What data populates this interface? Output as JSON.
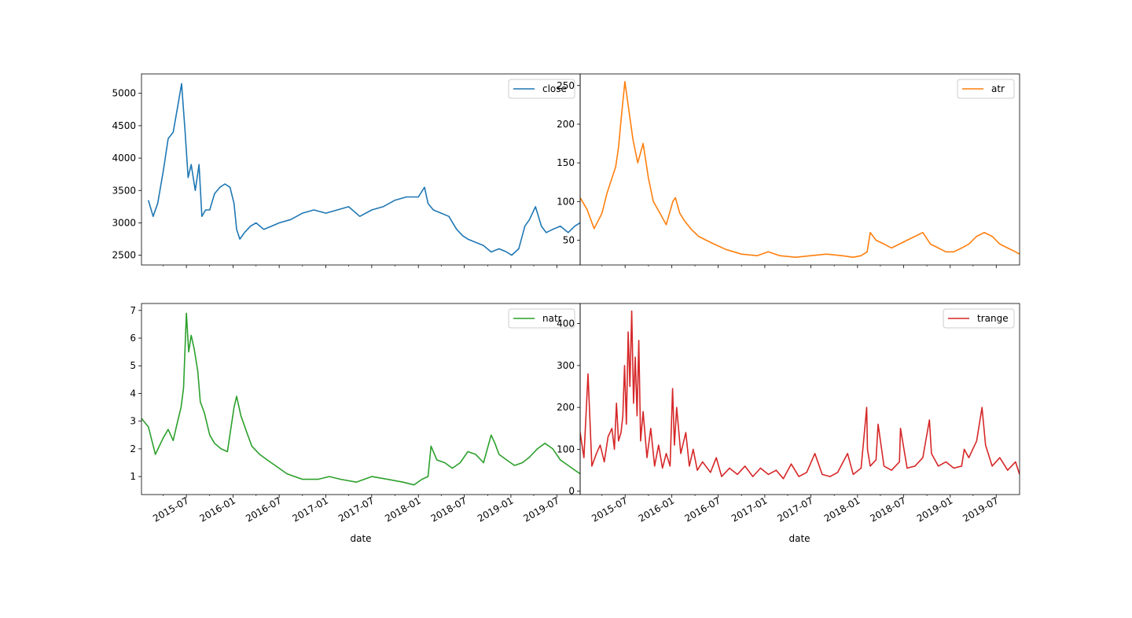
{
  "chart_data": [
    {
      "type": "line",
      "series": [
        {
          "name": "close",
          "color": "#1f77b4",
          "x": [
            "2015-02-01",
            "2015-02-20",
            "2015-03-10",
            "2015-04-01",
            "2015-04-20",
            "2015-05-10",
            "2015-05-28",
            "2015-06-12",
            "2015-06-26",
            "2015-07-08",
            "2015-07-20",
            "2015-08-05",
            "2015-08-20",
            "2015-08-31",
            "2015-09-15",
            "2015-10-01",
            "2015-10-20",
            "2015-11-10",
            "2015-11-30",
            "2015-12-20",
            "2016-01-05",
            "2016-01-15",
            "2016-01-28",
            "2016-02-15",
            "2016-03-10",
            "2016-04-01",
            "2016-05-01",
            "2016-06-01",
            "2016-07-01",
            "2016-08-15",
            "2016-10-01",
            "2016-11-15",
            "2017-01-01",
            "2017-02-15",
            "2017-04-01",
            "2017-05-15",
            "2017-07-01",
            "2017-08-15",
            "2017-10-01",
            "2017-11-15",
            "2018-01-01",
            "2018-01-25",
            "2018-02-08",
            "2018-03-01",
            "2018-04-01",
            "2018-05-01",
            "2018-06-01",
            "2018-06-25",
            "2018-07-15",
            "2018-08-15",
            "2018-09-15",
            "2018-10-15",
            "2018-11-15",
            "2018-12-15",
            "2019-01-04",
            "2019-02-01",
            "2019-02-25",
            "2019-03-15",
            "2019-04-08",
            "2019-05-01",
            "2019-05-20",
            "2019-06-15",
            "2019-07-15",
            "2019-08-15",
            "2019-09-10",
            "2019-09-30"
          ],
          "values": [
            3350,
            3100,
            3300,
            3800,
            4300,
            4400,
            4800,
            5150,
            4400,
            3700,
            3900,
            3500,
            3900,
            3100,
            3200,
            3200,
            3450,
            3550,
            3600,
            3550,
            3300,
            2900,
            2750,
            2850,
            2950,
            3000,
            2900,
            2950,
            3000,
            3050,
            3150,
            3200,
            3150,
            3200,
            3250,
            3100,
            3200,
            3250,
            3350,
            3400,
            3400,
            3550,
            3300,
            3200,
            3150,
            3100,
            2900,
            2800,
            2750,
            2700,
            2650,
            2550,
            2600,
            2550,
            2500,
            2600,
            2950,
            3050,
            3250,
            2950,
            2850,
            2900,
            2950,
            2850,
            2950,
            3000
          ]
        }
      ],
      "xticks": [
        "2015-07",
        "2016-01",
        "2016-07",
        "2017-01",
        "2017-07",
        "2018-01",
        "2018-07",
        "2019-01",
        "2019-07"
      ],
      "yticks": [
        "2500",
        "3000",
        "3500",
        "4000",
        "4500",
        "5000"
      ],
      "ylim": [
        2350,
        5300
      ],
      "xlim": [
        "2015-01-05",
        "2019-10-01"
      ],
      "legend": "top-right"
    },
    {
      "type": "line",
      "series": [
        {
          "name": "atr",
          "color": "#ff7f0e",
          "x": [
            "2015-01-05",
            "2015-02-01",
            "2015-03-01",
            "2015-04-01",
            "2015-04-20",
            "2015-05-10",
            "2015-05-25",
            "2015-06-05",
            "2015-06-15",
            "2015-06-30",
            "2015-07-15",
            "2015-08-01",
            "2015-08-20",
            "2015-09-10",
            "2015-10-01",
            "2015-10-20",
            "2015-11-15",
            "2015-12-10",
            "2016-01-05",
            "2016-01-15",
            "2016-02-01",
            "2016-02-20",
            "2016-03-15",
            "2016-04-15",
            "2016-05-15",
            "2016-06-15",
            "2016-08-01",
            "2016-10-01",
            "2016-12-01",
            "2017-01-15",
            "2017-03-01",
            "2017-05-01",
            "2017-07-01",
            "2017-09-01",
            "2017-11-01",
            "2017-12-15",
            "2018-01-15",
            "2018-02-08",
            "2018-02-20",
            "2018-03-15",
            "2018-04-15",
            "2018-05-15",
            "2018-06-15",
            "2018-07-15",
            "2018-08-15",
            "2018-09-15",
            "2018-10-15",
            "2018-11-15",
            "2018-12-15",
            "2019-01-15",
            "2019-02-15",
            "2019-03-15",
            "2019-04-15",
            "2019-05-15",
            "2019-06-15",
            "2019-07-15",
            "2019-08-15",
            "2019-09-15",
            "2019-10-01"
          ],
          "values": [
            105,
            90,
            65,
            85,
            110,
            130,
            145,
            170,
            205,
            255,
            220,
            180,
            150,
            175,
            130,
            100,
            85,
            70,
            100,
            105,
            85,
            75,
            65,
            55,
            50,
            45,
            38,
            32,
            30,
            35,
            30,
            28,
            30,
            32,
            30,
            28,
            30,
            35,
            60,
            50,
            45,
            40,
            45,
            50,
            55,
            60,
            45,
            40,
            35,
            35,
            40,
            45,
            55,
            60,
            55,
            45,
            40,
            35,
            32
          ]
        }
      ],
      "xticks": [
        "2015-07",
        "2016-01",
        "2016-07",
        "2017-01",
        "2017-07",
        "2018-01",
        "2018-07",
        "2019-01",
        "2019-07"
      ],
      "yticks": [
        "50",
        "100",
        "150",
        "200",
        "250"
      ],
      "ylim": [
        18,
        265
      ],
      "xlim": [
        "2015-01-05",
        "2019-10-01"
      ],
      "legend": "top-right"
    },
    {
      "type": "line",
      "series": [
        {
          "name": "natr",
          "color": "#2ca02c",
          "x": [
            "2015-01-05",
            "2015-02-01",
            "2015-03-01",
            "2015-04-01",
            "2015-04-20",
            "2015-05-10",
            "2015-05-25",
            "2015-06-10",
            "2015-06-20",
            "2015-07-01",
            "2015-07-10",
            "2015-07-20",
            "2015-08-01",
            "2015-08-15",
            "2015-08-25",
            "2015-09-10",
            "2015-10-01",
            "2015-10-20",
            "2015-11-15",
            "2015-12-10",
            "2016-01-05",
            "2016-01-15",
            "2016-02-01",
            "2016-02-20",
            "2016-03-15",
            "2016-04-15",
            "2016-05-15",
            "2016-06-15",
            "2016-08-01",
            "2016-10-01",
            "2016-12-01",
            "2017-01-15",
            "2017-03-01",
            "2017-05-01",
            "2017-07-01",
            "2017-09-01",
            "2017-11-01",
            "2017-12-15",
            "2018-01-15",
            "2018-02-08",
            "2018-02-20",
            "2018-03-15",
            "2018-04-15",
            "2018-05-15",
            "2018-06-15",
            "2018-07-15",
            "2018-08-15",
            "2018-09-15",
            "2018-10-15",
            "2018-10-30",
            "2018-11-15",
            "2018-12-15",
            "2019-01-15",
            "2019-02-15",
            "2019-03-15",
            "2019-04-15",
            "2019-05-15",
            "2019-06-15",
            "2019-07-15",
            "2019-08-15",
            "2019-09-15",
            "2019-10-01"
          ],
          "values": [
            3.1,
            2.8,
            1.8,
            2.4,
            2.7,
            2.3,
            2.9,
            3.5,
            4.2,
            6.9,
            5.5,
            6.1,
            5.6,
            4.8,
            3.7,
            3.3,
            2.5,
            2.2,
            2.0,
            1.9,
            3.5,
            3.9,
            3.2,
            2.7,
            2.1,
            1.8,
            1.6,
            1.4,
            1.1,
            0.9,
            0.9,
            1.0,
            0.9,
            0.8,
            1.0,
            0.9,
            0.8,
            0.7,
            0.9,
            1.0,
            2.1,
            1.6,
            1.5,
            1.3,
            1.5,
            1.9,
            1.8,
            1.5,
            2.5,
            2.2,
            1.8,
            1.6,
            1.4,
            1.5,
            1.7,
            2.0,
            2.2,
            2.0,
            1.6,
            1.4,
            1.2,
            1.1
          ]
        }
      ],
      "xticks": [
        "2015-07",
        "2016-01",
        "2016-07",
        "2017-01",
        "2017-07",
        "2018-01",
        "2018-07",
        "2019-01",
        "2019-07"
      ],
      "yticks": [
        "1",
        "2",
        "3",
        "4",
        "5",
        "6",
        "7"
      ],
      "ylim": [
        0.35,
        7.25
      ],
      "xlim": [
        "2015-01-05",
        "2019-10-01"
      ],
      "legend": "top-right"
    },
    {
      "type": "line",
      "series": [
        {
          "name": "trange",
          "color": "#d62728",
          "x": [
            "2015-01-05",
            "2015-01-20",
            "2015-02-05",
            "2015-02-20",
            "2015-03-10",
            "2015-03-25",
            "2015-04-10",
            "2015-04-25",
            "2015-05-10",
            "2015-05-20",
            "2015-05-28",
            "2015-06-05",
            "2015-06-15",
            "2015-06-22",
            "2015-06-29",
            "2015-07-06",
            "2015-07-13",
            "2015-07-20",
            "2015-07-27",
            "2015-08-03",
            "2015-08-10",
            "2015-08-17",
            "2015-08-24",
            "2015-08-31",
            "2015-09-10",
            "2015-09-25",
            "2015-10-10",
            "2015-10-25",
            "2015-11-10",
            "2015-11-25",
            "2015-12-10",
            "2015-12-25",
            "2016-01-04",
            "2016-01-11",
            "2016-01-20",
            "2016-02-05",
            "2016-02-25",
            "2016-03-10",
            "2016-03-25",
            "2016-04-10",
            "2016-05-01",
            "2016-06-01",
            "2016-06-24",
            "2016-07-15",
            "2016-08-15",
            "2016-09-15",
            "2016-10-15",
            "2016-11-15",
            "2016-12-15",
            "2017-01-15",
            "2017-02-15",
            "2017-03-15",
            "2017-04-15",
            "2017-05-15",
            "2017-06-15",
            "2017-07-17",
            "2017-08-15",
            "2017-09-15",
            "2017-10-15",
            "2017-11-23",
            "2017-12-15",
            "2018-01-15",
            "2018-02-06",
            "2018-02-09",
            "2018-02-20",
            "2018-03-15",
            "2018-03-23",
            "2018-04-15",
            "2018-05-15",
            "2018-06-15",
            "2018-06-19",
            "2018-07-15",
            "2018-08-15",
            "2018-09-15",
            "2018-10-11",
            "2018-10-19",
            "2018-11-15",
            "2018-12-15",
            "2019-01-15",
            "2019-02-15",
            "2019-02-25",
            "2019-03-15",
            "2019-04-15",
            "2019-05-06",
            "2019-05-20",
            "2019-06-15",
            "2019-07-15",
            "2019-08-15",
            "2019-09-15",
            "2019-10-01"
          ],
          "values": [
            140,
            80,
            280,
            60,
            90,
            110,
            70,
            130,
            150,
            100,
            210,
            120,
            140,
            180,
            300,
            160,
            380,
            250,
            430,
            210,
            320,
            180,
            360,
            120,
            190,
            80,
            150,
            60,
            110,
            55,
            90,
            60,
            245,
            110,
            200,
            90,
            140,
            60,
            100,
            50,
            70,
            45,
            80,
            35,
            55,
            40,
            60,
            35,
            55,
            40,
            50,
            30,
            65,
            35,
            45,
            90,
            40,
            35,
            45,
            90,
            40,
            55,
            200,
            100,
            60,
            75,
            160,
            60,
            50,
            70,
            150,
            55,
            60,
            80,
            170,
            90,
            60,
            70,
            55,
            60,
            100,
            80,
            120,
            200,
            110,
            60,
            80,
            50,
            70,
            40
          ]
        }
      ],
      "xticks": [
        "2015-07",
        "2016-01",
        "2016-07",
        "2017-01",
        "2017-07",
        "2018-01",
        "2018-07",
        "2019-01",
        "2019-07"
      ],
      "yticks": [
        "0",
        "100",
        "200",
        "300",
        "400"
      ],
      "ylim": [
        -8,
        448
      ],
      "xlim": [
        "2015-01-05",
        "2019-10-01"
      ],
      "legend": "top-right"
    }
  ],
  "axes": {
    "xlabel": "date"
  }
}
